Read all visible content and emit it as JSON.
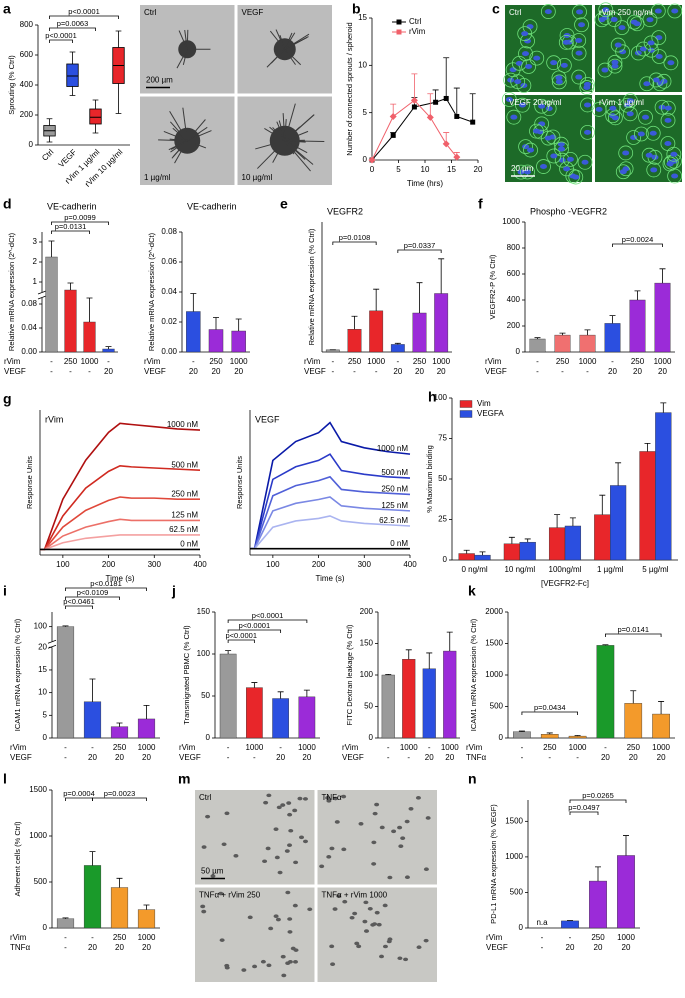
{
  "chart_data": [
    {
      "type": "box",
      "panel": "a",
      "ylabel": "Sprouting (% Ctrl)",
      "categories": [
        "Ctrl",
        "VEGF",
        "rVim 1 µg/ml",
        "rVim 10 µg/ml"
      ],
      "boxes": [
        {
          "min": 20,
          "q1": 60,
          "median": 95,
          "q3": 130,
          "max": 175
        },
        {
          "min": 330,
          "q1": 390,
          "median": 460,
          "q3": 540,
          "max": 620
        },
        {
          "min": 80,
          "q1": 140,
          "median": 185,
          "q3": 240,
          "max": 300
        },
        {
          "min": 210,
          "q1": 410,
          "median": 530,
          "q3": 650,
          "max": 760
        }
      ],
      "colors": [
        "#9a9a9a",
        "#2b4fe0",
        "#e8262a",
        "#e8262a"
      ],
      "ylim": [
        0,
        800
      ],
      "yticks": [
        0,
        200,
        400,
        600,
        800
      ],
      "annotations": [
        "p<0.0001",
        "p=0.0063",
        "p<0.0001"
      ]
    },
    {
      "type": "micrograph",
      "tint": "gray",
      "labels": [
        "Ctrl",
        "VEGF",
        "1 µg/ml",
        "10 µg/ml"
      ],
      "scale_bar": "200 µm"
    },
    {
      "type": "line",
      "panel": "b",
      "ylabel": "Number of connected sprouts / spheroid",
      "xlabel": "Time (hrs)",
      "xlim": [
        0,
        20
      ],
      "xticks": [
        0,
        5,
        10,
        15,
        20
      ],
      "ylim": [
        0,
        15
      ],
      "yticks": [
        0,
        5,
        10,
        15
      ],
      "markers": true,
      "legend": "top-left",
      "series": [
        {
          "name": "Ctrl",
          "color": "#000000",
          "marker": "square",
          "x": [
            0,
            4,
            8,
            12,
            14,
            16,
            19
          ],
          "values": [
            0,
            2.6,
            5.6,
            6.1,
            6.5,
            4.6,
            4.0
          ],
          "errors": [
            0,
            0.3,
            1.0,
            1.3,
            4.3,
            3.0,
            3.0
          ]
        },
        {
          "name": "rVim",
          "color": "#f0606a",
          "marker": "diamond",
          "x": [
            0,
            4,
            8,
            11,
            14,
            16
          ],
          "values": [
            0,
            4.6,
            6.3,
            4.5,
            1.7,
            0.3
          ],
          "errors": [
            0,
            1.3,
            2.8,
            2.5,
            1.2,
            0.5
          ]
        }
      ]
    },
    {
      "type": "micrograph",
      "panel": "c",
      "tint": "green",
      "labels": [
        "Ctrl",
        "rVim 250 ng/ml",
        "VEGF 20ng/ml",
        "rVim 1 µg/ml"
      ],
      "scale_bar": "20 µm"
    },
    {
      "type": "bar",
      "panel": "d",
      "title": "VE-cadherin",
      "ylabel": "Relative mRNA expression (2^-dCt)",
      "values": [
        2.25,
        0.6,
        0.05,
        0.005
      ],
      "errors": [
        0.8,
        0.35,
        0.04,
        0.004
      ],
      "colors": [
        "#9a9a9a",
        "#e8262a",
        "#e8262a",
        "#2b4fe0"
      ],
      "ylim": [
        0,
        3.5
      ],
      "ybreak": [
        0.09,
        0.5
      ],
      "yticks": [
        {
          "value": 0,
          "label": "0.00"
        },
        {
          "value": 0.04,
          "label": "0.04"
        },
        {
          "value": 0.08,
          "label": "0.08"
        },
        1,
        2,
        3
      ],
      "condition_rows": [
        {
          "name": "rVim",
          "labels": [
            "-",
            "250",
            "1000",
            "-"
          ]
        },
        {
          "name": "VEGF",
          "labels": [
            "-",
            "-",
            "-",
            "20"
          ]
        }
      ],
      "annotations": [
        "p=0.0099",
        "p=0.0131"
      ]
    },
    {
      "type": "bar",
      "title": "VE-cadherin",
      "ylabel": "Relative mRNA expression (2^-dCt)",
      "values": [
        0.027,
        0.015,
        0.014
      ],
      "errors": [
        0.012,
        0.008,
        0.008
      ],
      "colors": [
        "#2b4fe0",
        "#9b2bd8",
        "#9b2bd8"
      ],
      "ylim": [
        0,
        0.08
      ],
      "yticks": [
        {
          "value": 0,
          "label": "0.00"
        },
        {
          "value": 0.02,
          "label": "0.02"
        },
        {
          "value": 0.04,
          "label": "0.04"
        },
        {
          "value": 0.06,
          "label": "0.06"
        },
        {
          "value": 0.08,
          "label": "0.08"
        }
      ],
      "condition_rows": [
        {
          "name": "rVim",
          "labels": [
            "-",
            "250",
            "1000"
          ]
        },
        {
          "name": "VEGF",
          "labels": [
            "20",
            "20",
            "20"
          ]
        }
      ]
    },
    {
      "type": "bar",
      "panel": "e",
      "title": "VEGFR2",
      "ylabel": "Relative mRNA expression (% Ctrl)",
      "values": [
        100,
        1050,
        1900,
        350,
        1800,
        2700
      ],
      "errors": [
        5,
        600,
        1000,
        50,
        1400,
        1600
      ],
      "colors": [
        "#9a9a9a",
        "#e8262a",
        "#e8262a",
        "#2b4fe0",
        "#9b2bd8",
        "#9b2bd8"
      ],
      "ylim": [
        0,
        6000
      ],
      "yticks": [],
      "condition_rows": [
        {
          "name": "rVim",
          "labels": [
            "-",
            "250",
            "1000",
            "-",
            "250",
            "1000"
          ]
        },
        {
          "name": "VEGF",
          "labels": [
            "-",
            "-",
            "-",
            "20",
            "20",
            "20"
          ]
        }
      ],
      "annotations": [
        "p=0.0108",
        "p=0.0337"
      ]
    },
    {
      "type": "bar",
      "panel": "f",
      "title": "Phospho -VEGFR2",
      "ylabel": "VEGFR2-P (% Ctrl)",
      "values": [
        100,
        130,
        130,
        220,
        400,
        530
      ],
      "errors": [
        10,
        15,
        40,
        60,
        70,
        110
      ],
      "colors": [
        "#9a9a9a",
        "#f07070",
        "#f07070",
        "#2b4fe0",
        "#9b2bd8",
        "#9b2bd8"
      ],
      "ylim": [
        0,
        1000
      ],
      "yticks": [
        0,
        200,
        400,
        600,
        800,
        1000
      ],
      "condition_rows": [
        {
          "name": "rVim",
          "labels": [
            "-",
            "250",
            "1000",
            "-",
            "250",
            "1000"
          ]
        },
        {
          "name": "VEGF",
          "labels": [
            "-",
            "-",
            "-",
            "20",
            "20",
            "20"
          ]
        }
      ],
      "annotations": [
        "p=0.0024"
      ]
    },
    {
      "type": "line",
      "panel": "g",
      "title": "rVim",
      "ylabel": "Response Units",
      "xlabel": "Time (s)",
      "xlim": [
        50,
        400
      ],
      "xticks": [
        100,
        200,
        300,
        400
      ],
      "ylim": [
        -5,
        125
      ],
      "yticks": [],
      "x": [
        50,
        60,
        100,
        150,
        200,
        225,
        250,
        300,
        350,
        400
      ],
      "series": [
        {
          "name": "1000 nM",
          "color": "#b01010",
          "values": [
            0,
            0,
            45,
            80,
            105,
            113,
            112,
            110,
            108,
            107
          ]
        },
        {
          "name": "500 nM",
          "color": "#d02a20",
          "values": [
            0,
            0,
            30,
            55,
            70,
            75,
            74,
            73,
            72,
            71
          ]
        },
        {
          "name": "250 nM",
          "color": "#e0483a",
          "values": [
            0,
            0,
            20,
            35,
            44,
            47,
            46,
            46,
            45,
            45
          ]
        },
        {
          "name": "125 nM",
          "color": "#ec7068",
          "values": [
            0,
            0,
            12,
            20,
            25,
            27,
            26,
            26,
            26,
            26
          ]
        },
        {
          "name": "62.5 nM",
          "color": "#f4a0a0",
          "values": [
            0,
            0,
            6,
            10,
            12,
            13,
            13,
            13,
            13,
            13
          ]
        },
        {
          "name": "0 nM",
          "color": "#000000",
          "values": [
            0,
            0,
            0,
            0,
            0,
            0,
            0,
            0,
            0,
            0
          ]
        }
      ]
    },
    {
      "type": "line",
      "title": "VEGF",
      "ylabel": "Response Units",
      "xlabel": "Time (s)",
      "xlim": [
        50,
        400
      ],
      "xticks": [
        100,
        200,
        300,
        400
      ],
      "ylim": [
        -5,
        110
      ],
      "yticks": [],
      "x": [
        50,
        60,
        100,
        150,
        200,
        225,
        250,
        300,
        350,
        400
      ],
      "series": [
        {
          "name": "1000 nM",
          "color": "#0a1aa8",
          "values": [
            0,
            0,
            70,
            85,
            92,
            100,
            85,
            80,
            77,
            75
          ]
        },
        {
          "name": "500 nM",
          "color": "#2a3ac8",
          "values": [
            0,
            0,
            55,
            65,
            70,
            75,
            62,
            59,
            57,
            56
          ]
        },
        {
          "name": "250 nM",
          "color": "#5060d8",
          "values": [
            0,
            0,
            42,
            50,
            54,
            57,
            47,
            45,
            44,
            43
          ]
        },
        {
          "name": "125 nM",
          "color": "#7a88e4",
          "values": [
            0,
            0,
            30,
            36,
            39,
            41,
            34,
            32,
            31,
            30
          ]
        },
        {
          "name": "62.5 nM",
          "color": "#aab4f0",
          "values": [
            0,
            0,
            17,
            22,
            24,
            26,
            22,
            20,
            19,
            18
          ]
        },
        {
          "name": "0 nM",
          "color": "#000000",
          "values": [
            0,
            0,
            0,
            0,
            0,
            0,
            0,
            0,
            0,
            0
          ]
        }
      ]
    },
    {
      "type": "grouped_bar",
      "panel": "h",
      "ylabel": "% Maximum binding",
      "xlabel": "[VEGFR2-Fc]",
      "categories": [
        "0 ng/ml",
        "10 ng/ml",
        "100ng/ml",
        "1 µg/ml",
        "5 µg/ml"
      ],
      "ylim": [
        0,
        100
      ],
      "yticks": [
        0,
        25,
        50,
        75,
        100
      ],
      "legend": "top-left",
      "series": [
        {
          "name": "Vim",
          "color": "#e8262a",
          "values": [
            4,
            10,
            20,
            28,
            67
          ],
          "errors": [
            2,
            4,
            8,
            12,
            5
          ]
        },
        {
          "name": "VEGFA",
          "color": "#2b4fe0",
          "values": [
            3,
            11,
            21,
            46,
            91
          ],
          "errors": [
            2,
            2,
            5,
            14,
            6
          ]
        }
      ]
    },
    {
      "type": "bar",
      "panel": "i",
      "ylabel": "ICAM1 mRNA expression (% Ctrl)",
      "values": [
        100,
        8,
        2.5,
        4.2
      ],
      "errors": [
        0.5,
        5,
        0.8,
        3
      ],
      "colors": [
        "#9a9a9a",
        "#2b4fe0",
        "#9b2bd8",
        "#9b2bd8"
      ],
      "ylim": [
        0,
        110
      ],
      "ybreak": [
        20,
        90
      ],
      "yticks": [
        0,
        5,
        10,
        15,
        20,
        100
      ],
      "condition_rows": [
        {
          "name": "rVim",
          "labels": [
            "-",
            "-",
            "250",
            "1000"
          ]
        },
        {
          "name": "VEGF",
          "labels": [
            "-",
            "20",
            "20",
            "20"
          ]
        }
      ],
      "annotations": [
        "p<0.0181",
        "p<0.0109",
        "p<0.0461"
      ]
    },
    {
      "type": "bar",
      "panel": "j",
      "ylabel": "Transmigrated PBMC (% Ctrl)",
      "values": [
        100,
        60,
        47,
        49
      ],
      "errors": [
        4,
        6,
        8,
        8
      ],
      "colors": [
        "#9a9a9a",
        "#e8262a",
        "#2b4fe0",
        "#9b2bd8"
      ],
      "ylim": [
        0,
        150
      ],
      "yticks": [
        0,
        50,
        100,
        150
      ],
      "condition_rows": [
        {
          "name": "rVim",
          "labels": [
            "-",
            "1000",
            "-",
            "1000"
          ]
        },
        {
          "name": "VEGF",
          "labels": [
            "-",
            "-",
            "20",
            "20"
          ]
        }
      ],
      "annotations": [
        "p<0.0001",
        "p<0.0001",
        "p<0.0001"
      ]
    },
    {
      "type": "bar",
      "ylabel": "FITC Dextran leakage (% Ctrl)",
      "values": [
        100,
        125,
        110,
        138
      ],
      "errors": [
        1,
        15,
        25,
        30
      ],
      "colors": [
        "#9a9a9a",
        "#e8262a",
        "#2b4fe0",
        "#9b2bd8"
      ],
      "ylim": [
        0,
        200
      ],
      "yticks": [
        0,
        50,
        100,
        150,
        200
      ],
      "condition_rows": [
        {
          "name": "rVim",
          "labels": [
            "-",
            "1000",
            "-",
            "1000"
          ]
        },
        {
          "name": "VEGF",
          "labels": [
            "-",
            "-",
            "20",
            "20"
          ]
        }
      ]
    },
    {
      "type": "bar",
      "panel": "k",
      "ylabel": "ICAM1 mRNA expression (% Ctrl)",
      "values": [
        100,
        60,
        30,
        1470,
        550,
        380
      ],
      "errors": [
        10,
        20,
        10,
        10,
        200,
        200
      ],
      "colors": [
        "#9a9a9a",
        "#f39a2b",
        "#f39a2b",
        "#1a9a2a",
        "#f39a2b",
        "#f39a2b"
      ],
      "ylim": [
        0,
        2000
      ],
      "yticks": [
        0,
        500,
        1000,
        1500,
        2000
      ],
      "condition_rows": [
        {
          "name": "rVim",
          "labels": [
            "-",
            "250",
            "1000",
            "-",
            "250",
            "1000"
          ]
        },
        {
          "name": "TNFα",
          "labels": [
            "-",
            "-",
            "-",
            "20",
            "20",
            "20"
          ]
        }
      ],
      "annotations": [
        "p=0.0434",
        "p=0.0141"
      ]
    },
    {
      "type": "bar",
      "panel": "l",
      "ylabel": "Adherent cells (% Ctrl)",
      "values": [
        100,
        680,
        440,
        200
      ],
      "errors": [
        10,
        150,
        100,
        50
      ],
      "colors": [
        "#9a9a9a",
        "#1a9a2a",
        "#f39a2b",
        "#f39a2b"
      ],
      "ylim": [
        0,
        1500
      ],
      "yticks": [
        0,
        500,
        1000,
        1500
      ],
      "condition_rows": [
        {
          "name": "rVim",
          "labels": [
            "-",
            "-",
            "250",
            "1000"
          ]
        },
        {
          "name": "TNFα",
          "labels": [
            "-",
            "20",
            "20",
            "20"
          ]
        }
      ],
      "annotations": [
        "p=0.0004",
        "p=0.0023"
      ]
    },
    {
      "type": "micrograph",
      "panel": "m",
      "tint": "light",
      "labels": [
        "Ctrl",
        "TNFα",
        "TNFα + rVim 250",
        "TNFα + rVim 1000"
      ],
      "scale_bar": "50 µm"
    },
    {
      "type": "bar",
      "panel": "n",
      "ylabel": "PD-L1 mRNA expression (% VEGF)",
      "values": [
        null,
        100,
        660,
        1020
      ],
      "value_labels": [
        "n.a",
        null,
        null,
        null
      ],
      "errors": [
        null,
        5,
        200,
        280
      ],
      "colors": [
        "#9a9a9a",
        "#2b4fe0",
        "#9b2bd8",
        "#9b2bd8"
      ],
      "ylim": [
        0,
        1800
      ],
      "yticks": [
        0,
        500,
        1000,
        1500
      ],
      "condition_rows": [
        {
          "name": "rVim",
          "labels": [
            "-",
            "-",
            "250",
            "1000"
          ]
        },
        {
          "name": "VEGF",
          "labels": [
            "-",
            "20",
            "20",
            "20"
          ]
        }
      ],
      "annotations": [
        "p=0.0265",
        "p=0.0497"
      ]
    }
  ]
}
